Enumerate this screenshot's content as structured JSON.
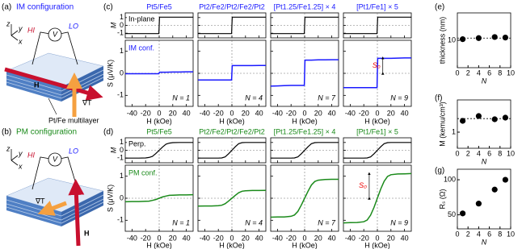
{
  "diagrams": [
    {
      "label": "(a)",
      "title": "IM configuration",
      "hi": "HI",
      "lo": "LO",
      "meter": "V",
      "field": "H",
      "grad": "∇T",
      "sample": "Pt/Fe multilayer",
      "axes": [
        "z",
        "y",
        "x"
      ]
    },
    {
      "label": "(b)",
      "title": "PM configuration",
      "hi": "HI",
      "lo": "LO",
      "meter": "V",
      "field": "H",
      "grad": "∇T",
      "axes": [
        "z",
        "y",
        "x"
      ]
    }
  ],
  "chart_data": [
    {
      "type": "line",
      "label": "(c)",
      "color": "#1a1aff",
      "xlabel": "H (kOe)",
      "xlim": [
        -50,
        50
      ],
      "xticks": [
        -40,
        -20,
        0,
        20,
        40
      ],
      "m_ylabel": "M",
      "m_ylim": [
        -1.6,
        1.6
      ],
      "m_yticks": [
        -1,
        0,
        1
      ],
      "s_ylabel": "S (μV/K)",
      "s_ylim": [
        -1.5,
        1.5
      ],
      "s_yticks": [
        -1,
        0,
        1
      ],
      "m_legend": "In-plane",
      "s_legend": "IM conf.",
      "x": [
        -50,
        -40,
        -30,
        -20,
        -10,
        -0.5,
        0.5,
        10,
        20,
        30,
        40,
        50
      ],
      "columns": [
        {
          "title": "Pt5/Fe5",
          "n_label": "N = 1",
          "m_values": [
            -1.05,
            -1.05,
            -1.05,
            -1.05,
            -1.05,
            -1.05,
            1.05,
            1.05,
            1.05,
            1.05,
            1.05,
            1.05
          ],
          "s_values": [
            -0.02,
            -0.02,
            -0.02,
            -0.02,
            -0.02,
            -0.02,
            0.05,
            0.05,
            0.06,
            0.06,
            0.07,
            0.07
          ]
        },
        {
          "title": "Pt2/Fe2/Pt2/Fe2/Pt2",
          "n_label": "N = 4",
          "m_values": [
            -1.05,
            -1.05,
            -1.05,
            -1.05,
            -1.05,
            -1.05,
            1.05,
            1.05,
            1.05,
            1.05,
            1.05,
            1.05
          ],
          "s_values": [
            -0.3,
            -0.3,
            -0.3,
            -0.3,
            -0.3,
            -0.3,
            0.35,
            0.35,
            0.35,
            0.35,
            0.36,
            0.36
          ]
        },
        {
          "title": "[Pt1.25/Fe1.25] × 4",
          "n_label": "N = 7",
          "m_values": [
            -1.05,
            -1.05,
            -1.05,
            -1.05,
            -1.05,
            -1.05,
            1.05,
            1.05,
            1.05,
            1.05,
            1.05,
            1.05
          ],
          "s_values": [
            -0.58,
            -0.57,
            -0.56,
            -0.55,
            -0.55,
            -0.55,
            0.6,
            0.6,
            0.61,
            0.61,
            0.62,
            0.62
          ]
        },
        {
          "title": "[Pt1/Fe1] × 5",
          "n_label": "N = 9",
          "annotation": "S₀",
          "m_values": [
            -1.05,
            -1.05,
            -1.05,
            -1.05,
            -1.05,
            -1.05,
            1.05,
            1.05,
            1.05,
            1.05,
            1.05,
            1.05
          ],
          "s_values": [
            -0.65,
            -0.65,
            -0.65,
            -0.65,
            -0.65,
            -0.65,
            0.68,
            0.68,
            0.68,
            0.69,
            0.7,
            0.7
          ]
        }
      ]
    },
    {
      "type": "line",
      "label": "(d)",
      "color": "#1a8a1a",
      "xlabel": "H (kOe)",
      "xlim": [
        -50,
        50
      ],
      "xticks": [
        -40,
        -20,
        0,
        20,
        40
      ],
      "m_ylabel": "M",
      "m_ylim": [
        -1.6,
        1.6
      ],
      "m_yticks": [
        -1,
        0,
        1
      ],
      "s_ylabel": "S (μV/K)",
      "s_ylim": [
        -1.5,
        1.5
      ],
      "s_yticks": [
        -1,
        0,
        1
      ],
      "m_legend": "Perp.",
      "s_legend": "PM conf.",
      "x": [
        -50,
        -40,
        -30,
        -20,
        -15,
        -10,
        -5,
        0,
        5,
        10,
        15,
        20,
        30,
        40,
        50
      ],
      "columns": [
        {
          "title": "Pt5/Fe5",
          "n_label": "N = 1",
          "m_values": [
            -1,
            -1,
            -1,
            -0.98,
            -0.92,
            -0.78,
            -0.42,
            0,
            0.42,
            0.78,
            0.92,
            0.98,
            1,
            1,
            1
          ],
          "s_values": [
            -0.16,
            -0.15,
            -0.15,
            -0.14,
            -0.13,
            -0.1,
            -0.06,
            0,
            0.06,
            0.1,
            0.13,
            0.14,
            0.15,
            0.15,
            0.16
          ]
        },
        {
          "title": "Pt2/Fe2/Pt2/Fe2/Pt2",
          "n_label": "N = 4",
          "m_values": [
            -1,
            -1,
            -1,
            -1,
            -0.98,
            -0.85,
            -0.45,
            0,
            0.45,
            0.85,
            0.98,
            1,
            1,
            1,
            1
          ],
          "s_values": [
            -0.36,
            -0.35,
            -0.35,
            -0.34,
            -0.32,
            -0.25,
            -0.13,
            0,
            0.13,
            0.25,
            0.32,
            0.34,
            0.35,
            0.35,
            0.36
          ]
        },
        {
          "title": "[Pt1.25/Fe1.25] × 4",
          "n_label": "N = 7",
          "m_values": [
            -1,
            -1,
            -1,
            -1,
            -0.98,
            -0.85,
            -0.45,
            0,
            0.45,
            0.85,
            0.98,
            1,
            1,
            1,
            1
          ],
          "s_values": [
            -0.86,
            -0.85,
            -0.85,
            -0.82,
            -0.76,
            -0.6,
            -0.32,
            0,
            0.32,
            0.6,
            0.76,
            0.82,
            0.85,
            0.86,
            0.86
          ]
        },
        {
          "title": "[Pt1/Fe1] × 5",
          "n_label": "N = 9",
          "annotation": "S₀",
          "m_values": [
            -1,
            -1,
            -1,
            -1,
            -0.98,
            -0.85,
            -0.45,
            0,
            0.45,
            0.85,
            0.98,
            1,
            1,
            1,
            1
          ],
          "s_values": [
            -1.12,
            -1.11,
            -1.1,
            -1.07,
            -0.99,
            -0.77,
            -0.42,
            0,
            0.42,
            0.77,
            0.99,
            1.07,
            1.1,
            1.11,
            1.12
          ]
        }
      ]
    },
    {
      "type": "scatter",
      "label": "(e)",
      "xlabel": "N",
      "ylabel": "thickness (nm)",
      "x": [
        1,
        4,
        7,
        9
      ],
      "values": [
        10.2,
        10.4,
        10.6,
        10.5
      ],
      "ref_line": 10.4,
      "xlim": [
        0,
        10
      ],
      "xticks": [
        0,
        2,
        4,
        6,
        8,
        10
      ],
      "ylim": [
        5,
        15
      ],
      "yticks": [
        10
      ],
      "color": "#000000"
    },
    {
      "type": "scatter",
      "label": "(f)",
      "xlabel": "N",
      "ylabel": "M (kemu/cm³)",
      "x": [
        1,
        4,
        7,
        9
      ],
      "values": [
        1.35,
        1.5,
        1.4,
        1.45
      ],
      "ref_line": 1.42,
      "xlim": [
        0,
        10
      ],
      "xticks": [
        0,
        2,
        4,
        6,
        8,
        10
      ],
      "ylim": [
        0.5,
        2
      ],
      "yticks": [
        1
      ],
      "color": "#000000"
    },
    {
      "type": "scatter",
      "label": "(g)",
      "xlabel": "N",
      "ylabel": "Rₛ (Ω)",
      "x": [
        1,
        4,
        7,
        9
      ],
      "values": [
        52,
        66,
        86,
        100
      ],
      "xlim": [
        0,
        10
      ],
      "xticks": [
        0,
        2,
        4,
        6,
        8,
        10
      ],
      "ylim": [
        30,
        115
      ],
      "yticks": [
        50,
        100
      ],
      "color": "#000000"
    }
  ]
}
